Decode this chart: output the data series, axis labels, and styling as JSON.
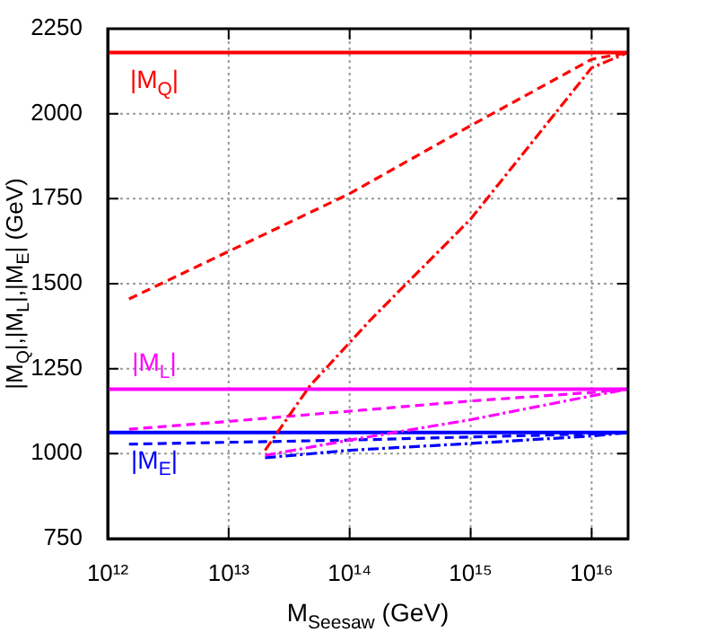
{
  "chart_data": {
    "type": "line",
    "xlabel": "M$_{Seesaw}$ (GeV)",
    "ylabel": "|M$_{Q}$|,|M$_{L}$|,|M$_{E}$| (GeV)",
    "log": "x",
    "grid": true,
    "legend": false,
    "marker": "none",
    "xlim": [
      1000000000000.0,
      2e+16
    ],
    "xticks": [
      {
        "value": 1000000000000.0,
        "label": "10¹²"
      },
      {
        "value": 10000000000000.0,
        "label": "10¹³"
      },
      {
        "value": 100000000000000.0,
        "label": "10¹⁴"
      },
      {
        "value": 1000000000000000.0,
        "label": "10¹⁵"
      },
      {
        "value": 1e+16,
        "label": "10¹⁶"
      }
    ],
    "ylim": [
      750,
      2250
    ],
    "yticks": [
      750,
      1000,
      1250,
      1500,
      1750,
      2000,
      2250
    ],
    "series": [
      {
        "name": "|M$_{Q}$|",
        "color": "#ff0000",
        "line_style": "solid",
        "x": [
          1000000000000.0,
          2e+16
        ],
        "values": [
          2180,
          2180
        ]
      },
      {
        "color": "#ff0000",
        "line_style": "dashed",
        "x": [
          1500000000000.0,
          10000000000000.0,
          100000000000000.0,
          1000000000000000.0,
          1e+16,
          2e+16
        ],
        "values": [
          1455,
          1595,
          1765,
          1965,
          2160,
          2180
        ]
      },
      {
        "color": "#ff0000",
        "line_style": "dashdot",
        "x": [
          20000000000000.0,
          47000000000000.0,
          150000000000000.0,
          1000000000000000.0,
          1e+16,
          2e+16
        ],
        "values": [
          1010,
          1200,
          1395,
          1690,
          2135,
          2180
        ]
      },
      {
        "name": "|M$_{L}$|",
        "color": "#ff00ff",
        "line_style": "solid",
        "x": [
          1000000000000.0,
          2e+16
        ],
        "values": [
          1190,
          1190
        ]
      },
      {
        "color": "#ff00ff",
        "line_style": "dashed",
        "x": [
          1500000000000.0,
          10000000000000.0,
          100000000000000.0,
          1000000000000000.0,
          1e+16,
          2e+16
        ],
        "values": [
          1072,
          1095,
          1125,
          1155,
          1180,
          1190
        ]
      },
      {
        "color": "#ff00ff",
        "line_style": "dashdot",
        "x": [
          20000000000000.0,
          100000000000000.0,
          1000000000000000.0,
          1e+16,
          2e+16
        ],
        "values": [
          995,
          1040,
          1100,
          1170,
          1190
        ]
      },
      {
        "name": "|M$_{E}$|",
        "color": "#0000ff",
        "line_style": "solid",
        "x": [
          1000000000000.0,
          2e+16
        ],
        "values": [
          1062,
          1062
        ]
      },
      {
        "color": "#0000ff",
        "line_style": "dashed",
        "x": [
          1500000000000.0,
          100000000000000.0,
          1e+16,
          2e+16
        ],
        "values": [
          1028,
          1040,
          1058,
          1062
        ]
      },
      {
        "color": "#0000ff",
        "line_style": "dashdot",
        "x": [
          20000000000000.0,
          100000000000000.0,
          1000000000000000.0,
          1e+16,
          2e+16
        ],
        "values": [
          988,
          1010,
          1030,
          1052,
          1062
        ]
      }
    ]
  }
}
